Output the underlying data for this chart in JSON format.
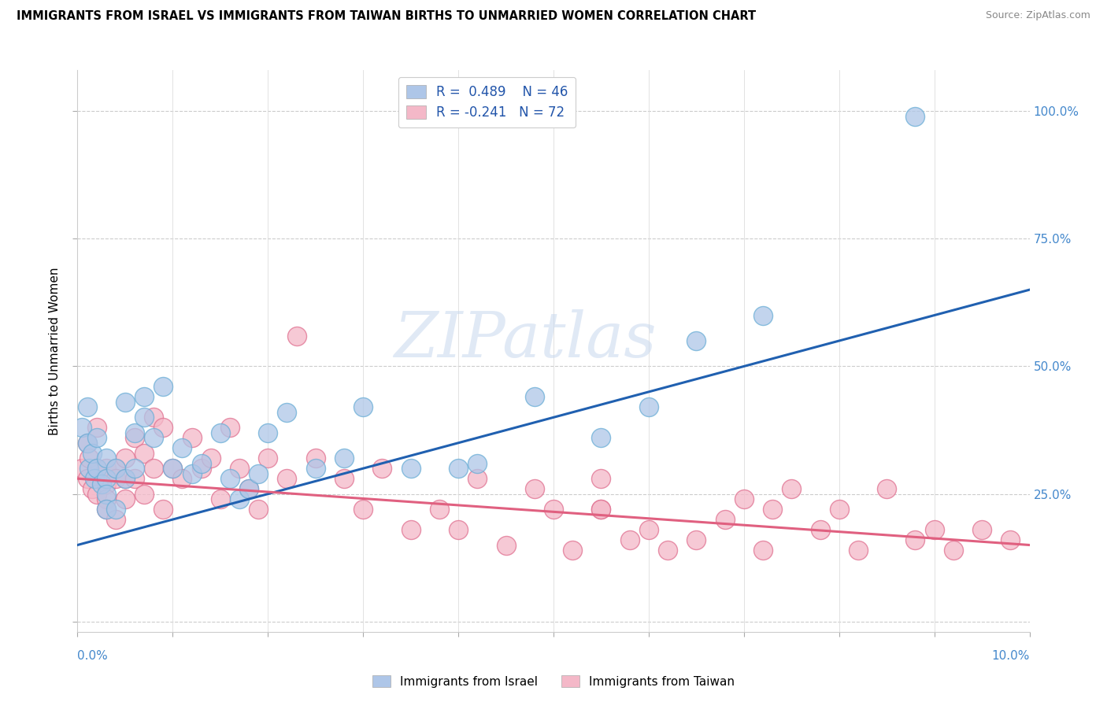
{
  "title": "IMMIGRANTS FROM ISRAEL VS IMMIGRANTS FROM TAIWAN BIRTHS TO UNMARRIED WOMEN CORRELATION CHART",
  "source": "Source: ZipAtlas.com",
  "ylabel": "Births to Unmarried Women",
  "y_ticks": [
    0.0,
    0.25,
    0.5,
    0.75,
    1.0
  ],
  "y_tick_labels_right": [
    "",
    "25.0%",
    "50.0%",
    "75.0%",
    "100.0%"
  ],
  "x_range": [
    0.0,
    0.1
  ],
  "y_range": [
    -0.02,
    1.08
  ],
  "israel_color": "#aec6e8",
  "israel_edge": "#6aaed6",
  "taiwan_color": "#f4b8c8",
  "taiwan_edge": "#e07090",
  "israel_line_color": "#2060b0",
  "taiwan_line_color": "#e06080",
  "israel_R": 0.489,
  "israel_N": 46,
  "taiwan_R": -0.241,
  "taiwan_N": 72,
  "legend_label_israel": "Immigrants from Israel",
  "legend_label_taiwan": "Immigrants from Taiwan",
  "watermark": "ZIPatlas",
  "israel_line_x0": 0.0,
  "israel_line_y0": 0.15,
  "israel_line_x1": 0.1,
  "israel_line_y1": 0.65,
  "taiwan_line_x0": 0.0,
  "taiwan_line_y0": 0.28,
  "taiwan_line_x1": 0.1,
  "taiwan_line_y1": 0.15,
  "israel_scatter_x": [
    0.0005,
    0.001,
    0.001,
    0.0012,
    0.0015,
    0.0018,
    0.002,
    0.002,
    0.0025,
    0.003,
    0.003,
    0.003,
    0.003,
    0.004,
    0.004,
    0.005,
    0.005,
    0.006,
    0.006,
    0.007,
    0.007,
    0.008,
    0.009,
    0.01,
    0.011,
    0.012,
    0.013,
    0.015,
    0.016,
    0.017,
    0.018,
    0.019,
    0.02,
    0.022,
    0.025,
    0.028,
    0.03,
    0.035,
    0.04,
    0.042,
    0.048,
    0.055,
    0.06,
    0.065,
    0.072,
    0.088
  ],
  "israel_scatter_y": [
    0.38,
    0.42,
    0.35,
    0.3,
    0.33,
    0.28,
    0.36,
    0.3,
    0.27,
    0.32,
    0.28,
    0.25,
    0.22,
    0.3,
    0.22,
    0.43,
    0.28,
    0.37,
    0.3,
    0.44,
    0.4,
    0.36,
    0.46,
    0.3,
    0.34,
    0.29,
    0.31,
    0.37,
    0.28,
    0.24,
    0.26,
    0.29,
    0.37,
    0.41,
    0.3,
    0.32,
    0.42,
    0.3,
    0.3,
    0.31,
    0.44,
    0.36,
    0.42,
    0.55,
    0.6,
    0.99
  ],
  "taiwan_scatter_x": [
    0.0005,
    0.001,
    0.001,
    0.0012,
    0.0015,
    0.002,
    0.002,
    0.002,
    0.003,
    0.003,
    0.003,
    0.003,
    0.004,
    0.004,
    0.004,
    0.005,
    0.005,
    0.005,
    0.006,
    0.006,
    0.007,
    0.007,
    0.008,
    0.008,
    0.009,
    0.009,
    0.01,
    0.011,
    0.012,
    0.013,
    0.014,
    0.015,
    0.016,
    0.017,
    0.018,
    0.019,
    0.02,
    0.022,
    0.023,
    0.025,
    0.028,
    0.03,
    0.032,
    0.035,
    0.038,
    0.04,
    0.042,
    0.045,
    0.048,
    0.05,
    0.052,
    0.055,
    0.055,
    0.058,
    0.06,
    0.062,
    0.065,
    0.068,
    0.07,
    0.072,
    0.075,
    0.078,
    0.08,
    0.082,
    0.085,
    0.088,
    0.09,
    0.092,
    0.055,
    0.073,
    0.095,
    0.098
  ],
  "taiwan_scatter_y": [
    0.3,
    0.35,
    0.28,
    0.32,
    0.26,
    0.3,
    0.38,
    0.25,
    0.27,
    0.3,
    0.24,
    0.22,
    0.3,
    0.28,
    0.2,
    0.32,
    0.28,
    0.24,
    0.36,
    0.28,
    0.33,
    0.25,
    0.4,
    0.3,
    0.38,
    0.22,
    0.3,
    0.28,
    0.36,
    0.3,
    0.32,
    0.24,
    0.38,
    0.3,
    0.26,
    0.22,
    0.32,
    0.28,
    0.56,
    0.32,
    0.28,
    0.22,
    0.3,
    0.18,
    0.22,
    0.18,
    0.28,
    0.15,
    0.26,
    0.22,
    0.14,
    0.22,
    0.28,
    0.16,
    0.18,
    0.14,
    0.16,
    0.2,
    0.24,
    0.14,
    0.26,
    0.18,
    0.22,
    0.14,
    0.26,
    0.16,
    0.18,
    0.14,
    0.22,
    0.22,
    0.18,
    0.16
  ]
}
